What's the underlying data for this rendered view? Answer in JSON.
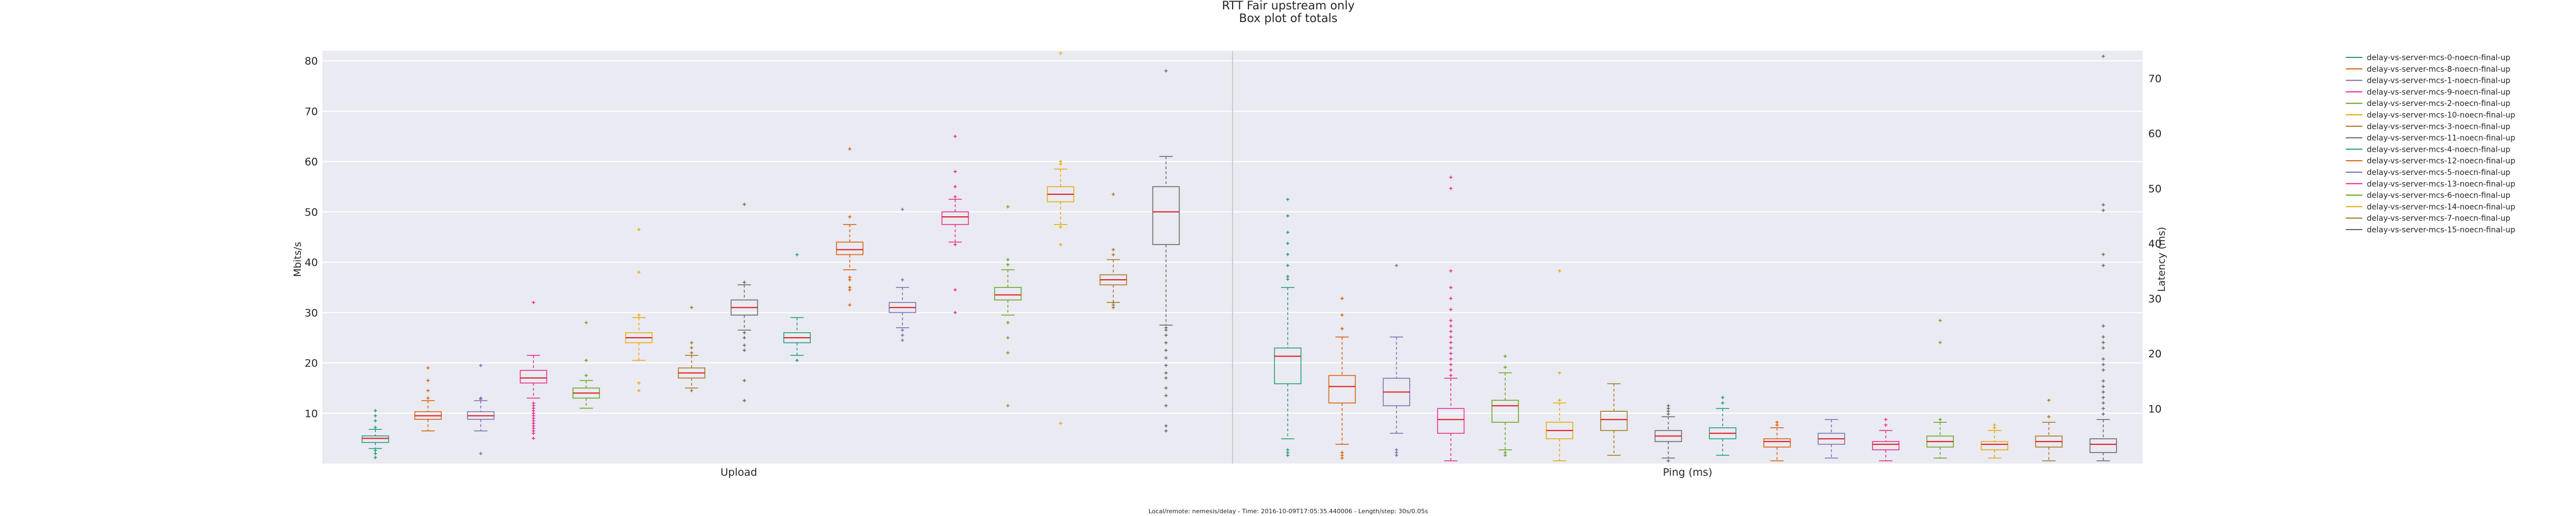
{
  "chart_data": {
    "type": "box",
    "title": "RTT Fair upstream only",
    "subtitle": "Box plot of totals",
    "footer": "Local/remote: nemesis/delay - Time: 2016-10-09T17:05:35.440006 - Length/step: 30s/0.05s",
    "left_axis": {
      "label": "Mbits/s",
      "ticks": [
        10,
        20,
        30,
        40,
        50,
        60,
        70,
        80
      ],
      "range": [
        0,
        82
      ]
    },
    "right_axis": {
      "label": "Latency (ms)",
      "ticks": [
        10,
        20,
        30,
        40,
        50,
        60,
        70
      ],
      "range": [
        0,
        75
      ]
    },
    "groups": [
      "Upload",
      "Ping (ms)"
    ],
    "grid": true,
    "legend_position": "right",
    "series": [
      {
        "name": "delay-vs-server-mcs-0-noecn-final-up",
        "color": "#1b9e77",
        "upload": {
          "q1": 4.2,
          "median": 5.0,
          "q3": 5.5,
          "whisker_low": 3.0,
          "whisker_high": 6.8,
          "outliers": [
            1.2,
            2.0,
            2.6,
            7.2,
            8.5,
            9.5,
            10.5
          ]
        },
        "ping": {
          "q1": 14.5,
          "median": 19.5,
          "q3": 21.0,
          "whisker_low": 4.5,
          "whisker_high": 32.0,
          "outliers": [
            1.5,
            2.0,
            2.5,
            33.5,
            34.0,
            36.0,
            38.0,
            40.0,
            42.0,
            45.0,
            48.0
          ]
        }
      },
      {
        "name": "delay-vs-server-mcs-8-noecn-final-up",
        "color": "#d95f02",
        "upload": {
          "q1": 8.8,
          "median": 9.5,
          "q3": 10.3,
          "whisker_low": 6.5,
          "whisker_high": 12.5,
          "outliers": [
            13.0,
            14.5,
            16.5,
            19.0
          ]
        },
        "ping": {
          "q1": 11.0,
          "median": 14.0,
          "q3": 16.0,
          "whisker_low": 3.5,
          "whisker_high": 23.0,
          "outliers": [
            1.0,
            1.5,
            2.0,
            24.5,
            27.0,
            30.0
          ]
        }
      },
      {
        "name": "delay-vs-server-mcs-1-noecn-final-up",
        "color": "#7570b3",
        "upload": {
          "q1": 8.8,
          "median": 9.5,
          "q3": 10.3,
          "whisker_low": 6.5,
          "whisker_high": 12.5,
          "outliers": [
            2.0,
            12.8,
            13.0,
            19.5
          ]
        },
        "ping": {
          "q1": 10.5,
          "median": 13.0,
          "q3": 15.5,
          "whisker_low": 5.5,
          "whisker_high": 23.0,
          "outliers": [
            1.5,
            2.0,
            2.5,
            36.0
          ]
        }
      },
      {
        "name": "delay-vs-server-mcs-9-noecn-final-up",
        "color": "#e7298a",
        "upload": {
          "q1": 16.0,
          "median": 17.0,
          "q3": 18.5,
          "whisker_low": 13.0,
          "whisker_high": 21.5,
          "outliers": [
            5.0,
            6.0,
            6.5,
            7.0,
            7.5,
            8.0,
            8.5,
            9.0,
            9.5,
            10.0,
            10.5,
            11.0,
            11.5,
            12.0,
            32.0
          ]
        },
        "ping": {
          "q1": 5.5,
          "median": 8.0,
          "q3": 10.0,
          "whisker_low": 0.5,
          "whisker_high": 15.5,
          "outliers": [
            16.0,
            17.0,
            18.0,
            19.0,
            20.0,
            21.0,
            22.0,
            23.0,
            24.0,
            25.0,
            26.0,
            28.0,
            30.0,
            32.0,
            35.0,
            50.0,
            52.0
          ]
        }
      },
      {
        "name": "delay-vs-server-mcs-2-noecn-final-up",
        "color": "#66a61e",
        "upload": {
          "q1": 13.0,
          "median": 14.0,
          "q3": 15.0,
          "whisker_low": 11.0,
          "whisker_high": 16.5,
          "outliers": [
            17.5,
            20.5,
            28.0
          ]
        },
        "ping": {
          "q1": 7.5,
          "median": 10.5,
          "q3": 11.5,
          "whisker_low": 2.5,
          "whisker_high": 16.5,
          "outliers": [
            1.5,
            2.0,
            17.5,
            19.5
          ]
        }
      },
      {
        "name": "delay-vs-server-mcs-10-noecn-final-up",
        "color": "#e6ab02",
        "upload": {
          "q1": 24.0,
          "median": 25.0,
          "q3": 26.0,
          "whisker_low": 20.5,
          "whisker_high": 29.0,
          "outliers": [
            14.5,
            16.0,
            29.5,
            38.0,
            46.5
          ]
        },
        "ping": {
          "q1": 4.5,
          "median": 6.0,
          "q3": 7.5,
          "whisker_low": 0.5,
          "whisker_high": 11.0,
          "outliers": [
            11.5,
            16.5,
            35.0
          ]
        }
      },
      {
        "name": "delay-vs-server-mcs-3-noecn-final-up",
        "color": "#a6761d",
        "upload": {
          "q1": 17.0,
          "median": 18.0,
          "q3": 19.0,
          "whisker_low": 15.0,
          "whisker_high": 21.5,
          "outliers": [
            14.5,
            22.0,
            23.0,
            24.0,
            31.0
          ]
        },
        "ping": {
          "q1": 6.0,
          "median": 8.0,
          "q3": 9.5,
          "whisker_low": 1.5,
          "whisker_high": 14.5,
          "outliers": []
        }
      },
      {
        "name": "delay-vs-server-mcs-11-noecn-final-up",
        "color": "#666666",
        "upload": {
          "q1": 29.5,
          "median": 31.0,
          "q3": 32.5,
          "whisker_low": 26.5,
          "whisker_high": 35.5,
          "outliers": [
            12.5,
            16.5,
            22.5,
            23.5,
            25.0,
            26.0,
            36.0,
            51.5
          ]
        },
        "ping": {
          "q1": 4.0,
          "median": 5.0,
          "q3": 6.0,
          "whisker_low": 1.0,
          "whisker_high": 8.5,
          "outliers": [
            0.5,
            9.0,
            9.5,
            10.0,
            10.5
          ]
        }
      },
      {
        "name": "delay-vs-server-mcs-4-noecn-final-up",
        "color": "#1b9e77",
        "upload": {
          "q1": 24.0,
          "median": 25.0,
          "q3": 26.0,
          "whisker_low": 21.5,
          "whisker_high": 29.0,
          "outliers": [
            20.5,
            41.5
          ]
        },
        "ping": {
          "q1": 4.5,
          "median": 5.5,
          "q3": 6.5,
          "whisker_low": 1.5,
          "whisker_high": 10.0,
          "outliers": [
            11.0,
            12.0
          ]
        }
      },
      {
        "name": "delay-vs-server-mcs-12-noecn-final-up",
        "color": "#d95f02",
        "upload": {
          "q1": 41.5,
          "median": 42.5,
          "q3": 44.0,
          "whisker_low": 38.5,
          "whisker_high": 47.5,
          "outliers": [
            31.5,
            34.5,
            35.0,
            36.5,
            37.0,
            49.0,
            62.5
          ]
        },
        "ping": {
          "q1": 3.0,
          "median": 4.0,
          "q3": 4.5,
          "whisker_low": 0.5,
          "whisker_high": 6.5,
          "outliers": [
            7.0,
            7.5
          ]
        }
      },
      {
        "name": "delay-vs-server-mcs-5-noecn-final-up",
        "color": "#7570b3",
        "upload": {
          "q1": 30.0,
          "median": 31.0,
          "q3": 32.0,
          "whisker_low": 27.0,
          "whisker_high": 35.0,
          "outliers": [
            24.5,
            25.5,
            26.5,
            36.5,
            50.5
          ]
        },
        "ping": {
          "q1": 3.5,
          "median": 4.5,
          "q3": 5.5,
          "whisker_low": 1.0,
          "whisker_high": 8.0,
          "outliers": []
        }
      },
      {
        "name": "delay-vs-server-mcs-13-noecn-final-up",
        "color": "#e7298a",
        "upload": {
          "q1": 47.5,
          "median": 49.0,
          "q3": 50.0,
          "whisker_low": 44.0,
          "whisker_high": 52.5,
          "outliers": [
            30.0,
            34.5,
            43.5,
            53.0,
            55.0,
            58.0,
            65.0
          ]
        },
        "ping": {
          "q1": 2.5,
          "median": 3.5,
          "q3": 4.0,
          "whisker_low": 0.5,
          "whisker_high": 6.0,
          "outliers": [
            7.0,
            8.0
          ]
        }
      },
      {
        "name": "delay-vs-server-mcs-6-noecn-final-up",
        "color": "#66a61e",
        "upload": {
          "q1": 32.5,
          "median": 33.5,
          "q3": 35.0,
          "whisker_low": 29.5,
          "whisker_high": 38.5,
          "outliers": [
            11.5,
            22.0,
            25.0,
            28.0,
            39.5,
            40.5,
            51.0
          ]
        },
        "ping": {
          "q1": 3.0,
          "median": 4.0,
          "q3": 5.0,
          "whisker_low": 1.0,
          "whisker_high": 7.5,
          "outliers": [
            8.0,
            22.0,
            26.0
          ]
        }
      },
      {
        "name": "delay-vs-server-mcs-14-noecn-final-up",
        "color": "#e6ab02",
        "upload": {
          "q1": 52.0,
          "median": 53.5,
          "q3": 55.0,
          "whisker_low": 47.5,
          "whisker_high": 58.5,
          "outliers": [
            8.0,
            43.5,
            47.0,
            59.5,
            60.0,
            81.5
          ]
        },
        "ping": {
          "q1": 2.5,
          "median": 3.5,
          "q3": 4.0,
          "whisker_low": 1.0,
          "whisker_high": 6.0,
          "outliers": [
            6.5,
            7.0
          ]
        }
      },
      {
        "name": "delay-vs-server-mcs-7-noecn-final-up",
        "color": "#a6761d",
        "upload": {
          "q1": 35.5,
          "median": 36.5,
          "q3": 37.5,
          "whisker_low": 32.0,
          "whisker_high": 40.5,
          "outliers": [
            31.0,
            31.5,
            32.0,
            41.5,
            42.5,
            53.5
          ]
        },
        "ping": {
          "q1": 3.0,
          "median": 4.0,
          "q3": 5.0,
          "whisker_low": 0.5,
          "whisker_high": 7.5,
          "outliers": [
            8.5,
            11.5
          ]
        }
      },
      {
        "name": "delay-vs-server-mcs-15-noecn-final-up",
        "color": "#666666",
        "upload": {
          "q1": 43.5,
          "median": 50.0,
          "q3": 55.0,
          "whisker_low": 27.5,
          "whisker_high": 61.0,
          "outliers": [
            6.5,
            7.5,
            11.5,
            13.5,
            15.0,
            17.0,
            18.0,
            19.5,
            21.0,
            22.5,
            24.0,
            25.5,
            26.5,
            27.0,
            78.0
          ]
        },
        "ping": {
          "q1": 2.0,
          "median": 3.5,
          "q3": 4.5,
          "whisker_low": 0.5,
          "whisker_high": 8.0,
          "outliers": [
            9.0,
            10.0,
            11.0,
            12.0,
            13.0,
            14.0,
            15.0,
            17.0,
            18.0,
            19.0,
            21.0,
            22.0,
            23.0,
            25.0,
            36.0,
            38.0,
            46.0,
            47.0,
            74.0
          ]
        }
      }
    ]
  }
}
